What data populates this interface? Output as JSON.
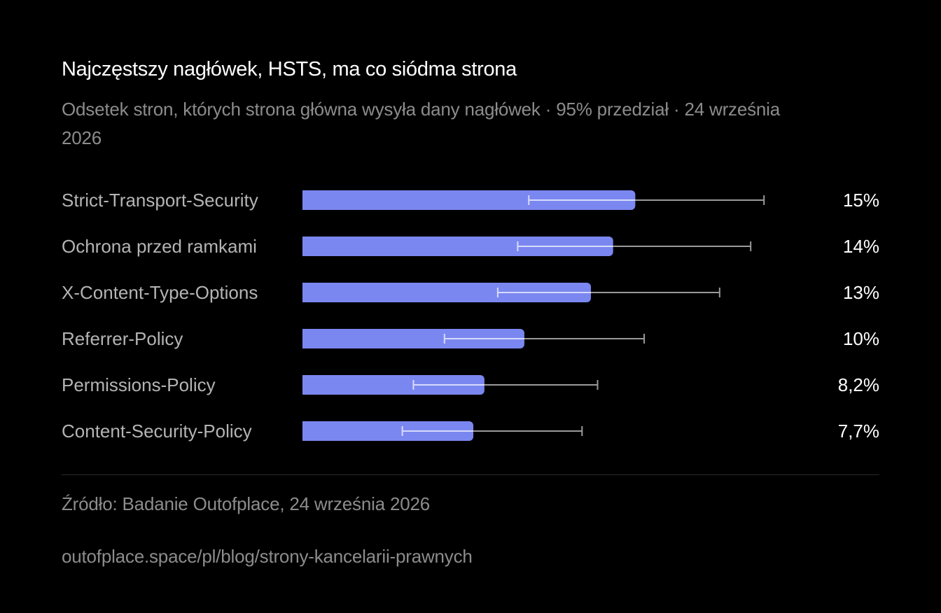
{
  "header": {
    "title": "Najczęstszy nagłówek, HSTS, ma co siódma strona",
    "subtitle": "Odsetek stron, których strona główna wysyła dany nagłówek · 95% przedział · 24 września 2026"
  },
  "footer": {
    "source": "Źródło: Badanie Outofplace, 24 września 2026",
    "url": "outofplace.space/pl/blog/strony-kancelarii-prawnych"
  },
  "colors": {
    "bar": "#7b87f0",
    "error_bar": "#9a9a9a",
    "error_bar_inside": "#d7dbfb",
    "category_label": "#b4b4b4",
    "value_label": "#ffffff"
  },
  "chart_data": {
    "type": "bar",
    "orientation": "horizontal",
    "categories": [
      "Strict-Transport-Security",
      "Ochrona przed ramkami",
      "X-Content-Type-Options",
      "Referrer-Policy",
      "Permissions-Policy",
      "Content-Security-Policy"
    ],
    "values": [
      15,
      14,
      13,
      10,
      8.2,
      7.7
    ],
    "value_labels": [
      "15%",
      "14%",
      "13%",
      "10%",
      "8,2%",
      "7,7%"
    ],
    "ci_low": [
      10.2,
      9.7,
      8.8,
      6.4,
      5.0,
      4.5
    ],
    "ci_high": [
      20.8,
      20.2,
      18.8,
      15.4,
      13.3,
      12.6
    ],
    "xlim": [
      0,
      26
    ],
    "unit": "%",
    "grid": false,
    "legend": "none"
  }
}
